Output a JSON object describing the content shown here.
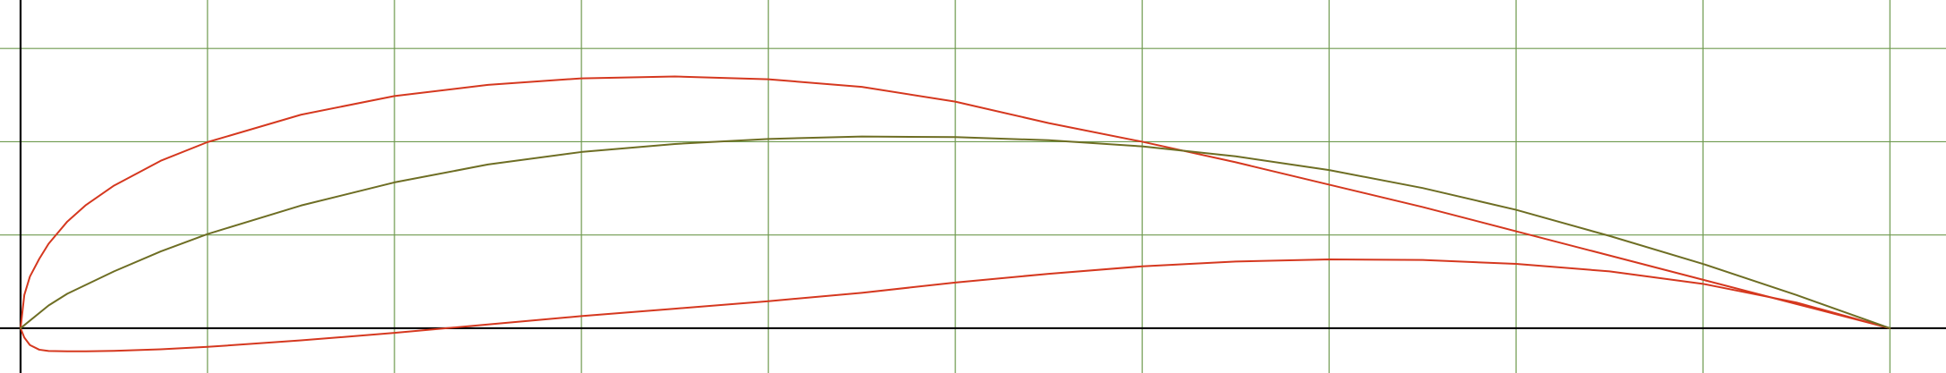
{
  "chart_data": {
    "type": "line",
    "title": "",
    "xlabel": "",
    "ylabel": "",
    "xlim": [
      -0.011,
      1.03
    ],
    "ylim": [
      -0.024,
      0.176
    ],
    "grid": true,
    "grid_x": [
      0.1,
      0.2,
      0.3,
      0.4,
      0.5,
      0.6,
      0.7,
      0.8,
      0.9,
      1.0
    ],
    "grid_y": [
      0.05,
      0.1,
      0.15
    ],
    "axes_at_zero": true,
    "legend": "none",
    "series": [
      {
        "color": "#d5381f",
        "x": [
          1.0,
          0.95,
          0.9,
          0.85,
          0.8,
          0.75,
          0.7,
          0.65,
          0.6,
          0.55,
          0.5,
          0.45,
          0.4,
          0.35,
          0.3,
          0.25,
          0.2,
          0.15,
          0.1,
          0.075,
          0.05,
          0.035,
          0.025,
          0.015,
          0.01,
          0.005,
          0.002,
          0.0
        ],
        "y": [
          0.0,
          0.013,
          0.026,
          0.039,
          0.052,
          0.065,
          0.077,
          0.089,
          0.1,
          0.11,
          0.1215,
          0.1294,
          0.1335,
          0.135,
          0.134,
          0.1305,
          0.1245,
          0.1145,
          0.0998,
          0.0898,
          0.0765,
          0.0661,
          0.0572,
          0.0453,
          0.0372,
          0.0277,
          0.0178,
          0.0
        ]
      },
      {
        "color": "#d5381f",
        "x": [
          0.0,
          0.002,
          0.005,
          0.01,
          0.015,
          0.025,
          0.035,
          0.05,
          0.075,
          0.1,
          0.15,
          0.2,
          0.25,
          0.3,
          0.35,
          0.4,
          0.45,
          0.5,
          0.55,
          0.6,
          0.65,
          0.7,
          0.75,
          0.8,
          0.85,
          0.9,
          0.95,
          1.0
        ],
        "y": [
          0.0,
          -0.005,
          -0.009,
          -0.0115,
          -0.0122,
          -0.0124,
          -0.0124,
          -0.0121,
          -0.0113,
          -0.01,
          -0.0065,
          -0.0025,
          0.002,
          0.0065,
          0.0105,
          0.0145,
          0.019,
          0.0245,
          0.0292,
          0.0332,
          0.0358,
          0.0369,
          0.0366,
          0.0345,
          0.0305,
          0.0238,
          0.0138,
          0.0
        ]
      },
      {
        "color": "#6e6e24",
        "x": [
          0.0,
          0.015,
          0.025,
          0.05,
          0.075,
          0.1,
          0.15,
          0.2,
          0.25,
          0.3,
          0.35,
          0.4,
          0.45,
          0.5,
          0.55,
          0.6,
          0.65,
          0.7,
          0.75,
          0.8,
          0.85,
          0.9,
          0.95,
          1.0
        ],
        "y": [
          0.0,
          0.0122,
          0.0185,
          0.0305,
          0.0412,
          0.0505,
          0.0658,
          0.0782,
          0.0878,
          0.0945,
          0.0988,
          0.1015,
          0.1028,
          0.1025,
          0.1008,
          0.0975,
          0.0922,
          0.0848,
          0.0752,
          0.0635,
          0.0495,
          0.0345,
          0.0178,
          0.0
        ]
      }
    ]
  }
}
